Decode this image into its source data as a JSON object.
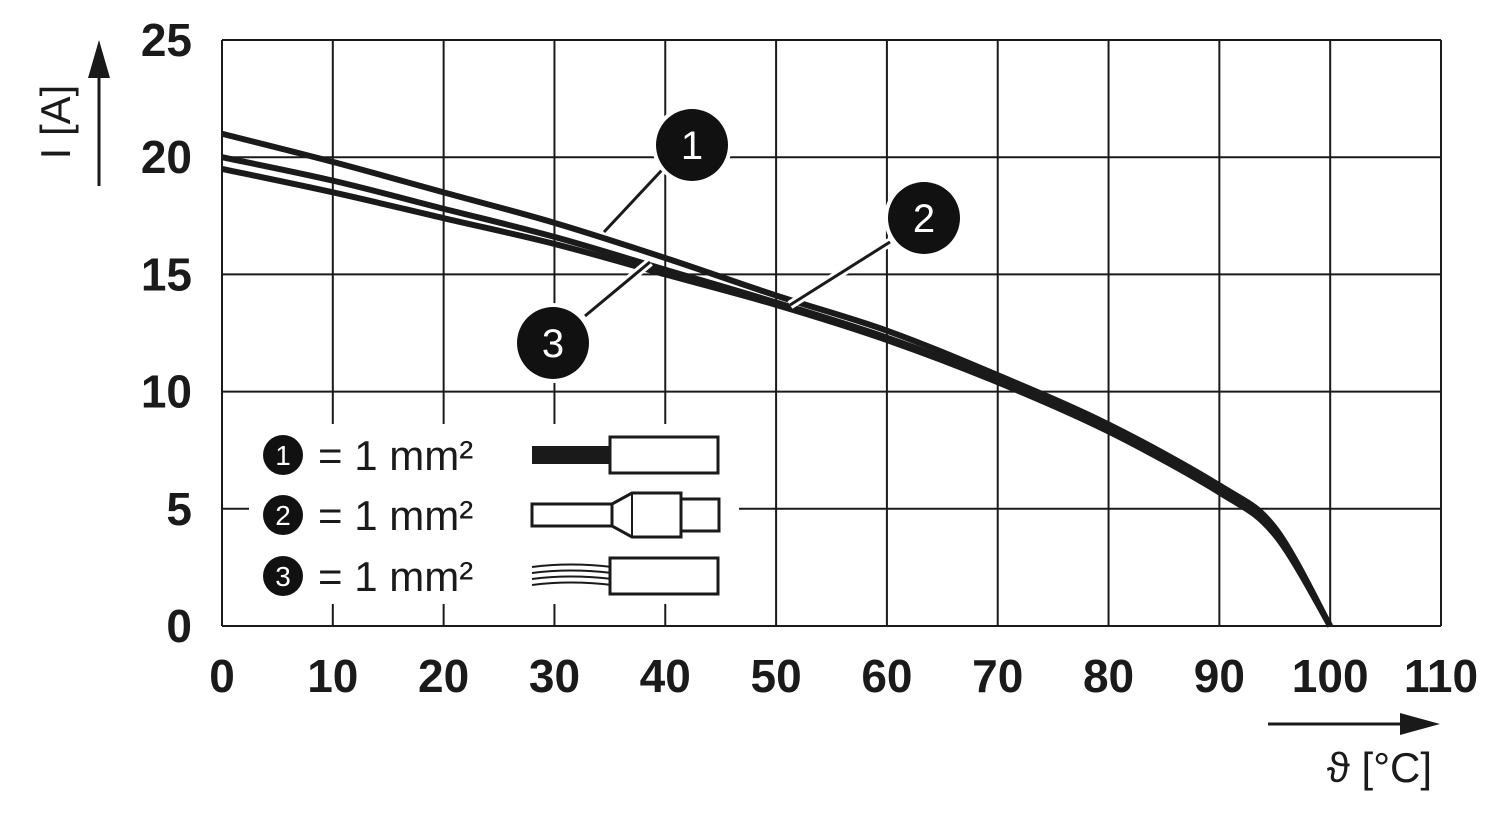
{
  "chart_data": {
    "type": "line",
    "xlabel": "ϑ [°C]",
    "ylabel": "I [A]",
    "xlim": [
      0,
      110
    ],
    "ylim": [
      0,
      25
    ],
    "x_ticks": [
      "0",
      "10",
      "20",
      "30",
      "40",
      "50",
      "60",
      "70",
      "80",
      "90",
      "100",
      "110"
    ],
    "y_ticks": [
      "0",
      "5",
      "10",
      "15",
      "20",
      "25"
    ],
    "grid": true,
    "series": [
      {
        "id": "1",
        "name": "1",
        "x": [
          0,
          10,
          20,
          30,
          40,
          50,
          60,
          70,
          80,
          90,
          95,
          100
        ],
        "y": [
          21.0,
          19.8,
          18.5,
          17.2,
          15.7,
          14.1,
          12.6,
          10.7,
          8.6,
          6.0,
          4.2,
          0
        ]
      },
      {
        "id": "2",
        "name": "2",
        "x": [
          0,
          10,
          20,
          30,
          40,
          50,
          60,
          70,
          80,
          90,
          95,
          100
        ],
        "y": [
          20.0,
          19.0,
          17.8,
          16.6,
          15.2,
          13.8,
          12.3,
          10.5,
          8.4,
          5.8,
          4.0,
          0
        ]
      },
      {
        "id": "3",
        "name": "3",
        "x": [
          0,
          10,
          20,
          30,
          40,
          50,
          60,
          70,
          80,
          90,
          95,
          100
        ],
        "y": [
          19.5,
          18.5,
          17.4,
          16.3,
          15.0,
          13.7,
          12.2,
          10.4,
          8.3,
          5.7,
          3.9,
          0
        ]
      }
    ],
    "callouts": [
      "1",
      "2",
      "3"
    ],
    "legend": {
      "placement": "bottom-left",
      "entries": [
        {
          "badge": "1",
          "text": "= 1 mm²",
          "icon": "solid-wire-icon"
        },
        {
          "badge": "2",
          "text": "= 1 mm²",
          "icon": "ferrule-wire-icon"
        },
        {
          "badge": "3",
          "text": "= 1 mm²",
          "icon": "stranded-wire-icon"
        }
      ]
    },
    "colors": {
      "line": "#1a1a1a",
      "grid": "#1a1a1a",
      "badge": "#111111"
    }
  }
}
